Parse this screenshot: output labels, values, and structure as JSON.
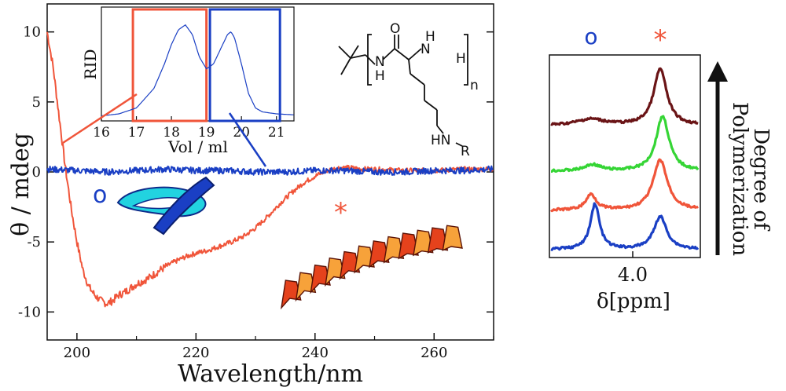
{
  "colors": {
    "red": "#f0553a",
    "blue": "#1a3fc4",
    "green": "#35d535",
    "maroon": "#6a1416",
    "black": "#111111"
  },
  "chart_data": [
    {
      "type": "line",
      "name": "cd-spectrum",
      "xlabel": "Wavelength/nm",
      "ylabel": "θ / mdeg",
      "xlim": [
        195,
        270
      ],
      "ylim": [
        -12,
        12
      ],
      "xticks": [
        200,
        220,
        240,
        260
      ],
      "yticks": [
        -10,
        -5,
        0,
        5,
        10
      ],
      "markers": {
        "cyclic": "o",
        "helix": "*"
      },
      "series": [
        {
          "color": "#f0553a",
          "x": [
            195,
            196,
            197,
            198,
            199,
            200,
            201,
            202,
            203,
            204,
            205,
            206,
            207,
            208,
            209,
            210,
            212,
            214,
            216,
            218,
            220,
            222,
            224,
            226,
            228,
            230,
            232,
            234,
            236,
            238,
            240,
            242,
            244,
            246,
            248,
            250,
            255,
            260,
            265,
            270
          ],
          "y": [
            10,
            7.5,
            4,
            0.5,
            -2.5,
            -5,
            -7,
            -8.2,
            -8.8,
            -9.2,
            -9.4,
            -9.2,
            -8.8,
            -8.6,
            -8.3,
            -8.0,
            -7.6,
            -7.0,
            -6.5,
            -6.1,
            -5.8,
            -5.6,
            -5.3,
            -5.0,
            -4.6,
            -4.0,
            -3.2,
            -2.3,
            -1.5,
            -0.8,
            -0.3,
            0.1,
            0.3,
            0.3,
            0.2,
            0.2,
            0.1,
            0.1,
            0.2,
            0.2
          ]
        },
        {
          "color": "#1a3fc4",
          "x": [
            195,
            200,
            205,
            210,
            215,
            220,
            225,
            230,
            235,
            240,
            245,
            250,
            255,
            260,
            265,
            270
          ],
          "y": [
            0.2,
            0.1,
            0.0,
            0.1,
            0.2,
            0.1,
            0.1,
            0.0,
            0.0,
            0.1,
            0.1,
            0.0,
            0.0,
            0.1,
            0.1,
            0.2
          ]
        }
      ]
    },
    {
      "type": "line",
      "name": "sec-inset",
      "xlabel": "Vol / ml",
      "ylabel": "RID",
      "xlim": [
        16,
        21.5
      ],
      "ylim": [
        0,
        1.1
      ],
      "xticks": [
        16,
        17,
        18,
        19,
        20,
        21
      ],
      "fraction_boxes": [
        {
          "color": "#f0553a",
          "range": [
            16.9,
            19.0
          ]
        },
        {
          "color": "#1a3fc4",
          "range": [
            19.1,
            21.1
          ]
        }
      ],
      "series": [
        {
          "color": "#1a3fc4",
          "x": [
            16.0,
            16.5,
            17.0,
            17.5,
            17.8,
            18.0,
            18.2,
            18.4,
            18.6,
            18.8,
            19.0,
            19.2,
            19.4,
            19.6,
            19.7,
            19.8,
            20.0,
            20.2,
            20.4,
            20.6,
            21.0,
            21.5
          ],
          "y": [
            0.02,
            0.04,
            0.1,
            0.3,
            0.55,
            0.75,
            0.9,
            0.95,
            0.85,
            0.62,
            0.5,
            0.55,
            0.7,
            0.85,
            0.88,
            0.82,
            0.55,
            0.25,
            0.1,
            0.06,
            0.04,
            0.03
          ]
        }
      ]
    },
    {
      "type": "line",
      "name": "nmr-stack",
      "xlabel": "δ[ppm]",
      "xticks_labels": [
        "4.0"
      ],
      "arrow_label": "Degree of Polymerization",
      "markers": {
        "cyclic": "o",
        "helix": "*"
      },
      "series": [
        {
          "color": "#6a1416",
          "x": [
            0,
            1
          ],
          "y": [
            0,
            1
          ]
        },
        {
          "color": "#35d535",
          "x": [
            0,
            1
          ],
          "y": [
            0,
            1
          ]
        },
        {
          "color": "#f0553a",
          "x": [
            0,
            1
          ],
          "y": [
            0,
            1
          ]
        },
        {
          "color": "#1a3fc4",
          "x": [
            0,
            1
          ],
          "y": [
            0,
            1
          ]
        }
      ]
    }
  ],
  "labels": {
    "cd_xlabel": "Wavelength/nm",
    "cd_ylabel": "θ / mdeg",
    "inset_ylabel": "RID",
    "inset_xlabel": "Vol / ml",
    "marker_cyclic": "o",
    "marker_helix": "*",
    "nmr_xlabel": "δ[ppm]",
    "nmr_tick": "4.0",
    "arrow_line1": "Degree of",
    "arrow_line2": "Polymerization",
    "chem_n": "n",
    "chem_h1": "H",
    "chem_h2": "H",
    "chem_h3": "H",
    "chem_o": "O",
    "chem_nh": "N",
    "chem_hnr": "HN",
    "chem_r": "R"
  }
}
